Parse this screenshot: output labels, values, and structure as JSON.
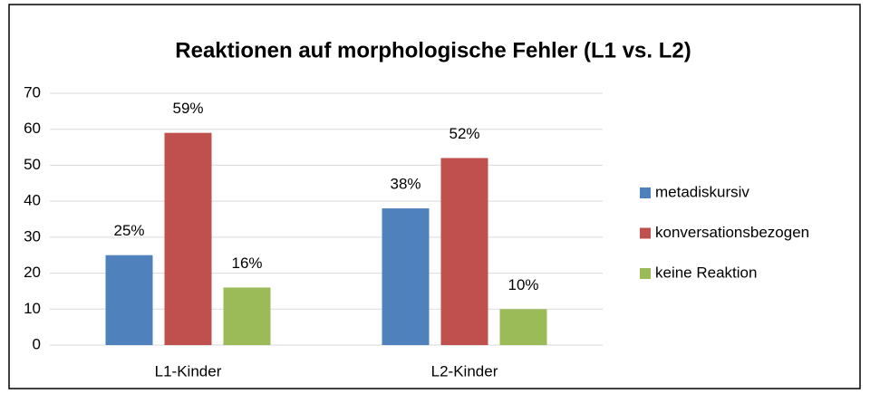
{
  "chart_data": {
    "type": "bar",
    "title": "Reaktionen auf morphologische Fehler  (L1 vs. L2)",
    "categories": [
      "L1-Kinder",
      "L2-Kinder"
    ],
    "series": [
      {
        "name": "metadiskursiv",
        "color": "#4f81bd",
        "values": [
          25,
          38
        ],
        "value_labels": [
          "25%",
          "38%"
        ]
      },
      {
        "name": "konversationsbezogen",
        "color": "#c0504d",
        "values": [
          59,
          52
        ],
        "value_labels": [
          "59%",
          "52%"
        ]
      },
      {
        "name": "keine Reaktion",
        "color": "#9bbb59",
        "values": [
          16,
          10
        ],
        "value_labels": [
          "16%",
          "10%"
        ]
      }
    ],
    "ylim": [
      0,
      70
    ],
    "yticks": [
      0,
      10,
      20,
      30,
      40,
      50,
      60,
      70
    ],
    "grid": true,
    "legend": "right"
  }
}
